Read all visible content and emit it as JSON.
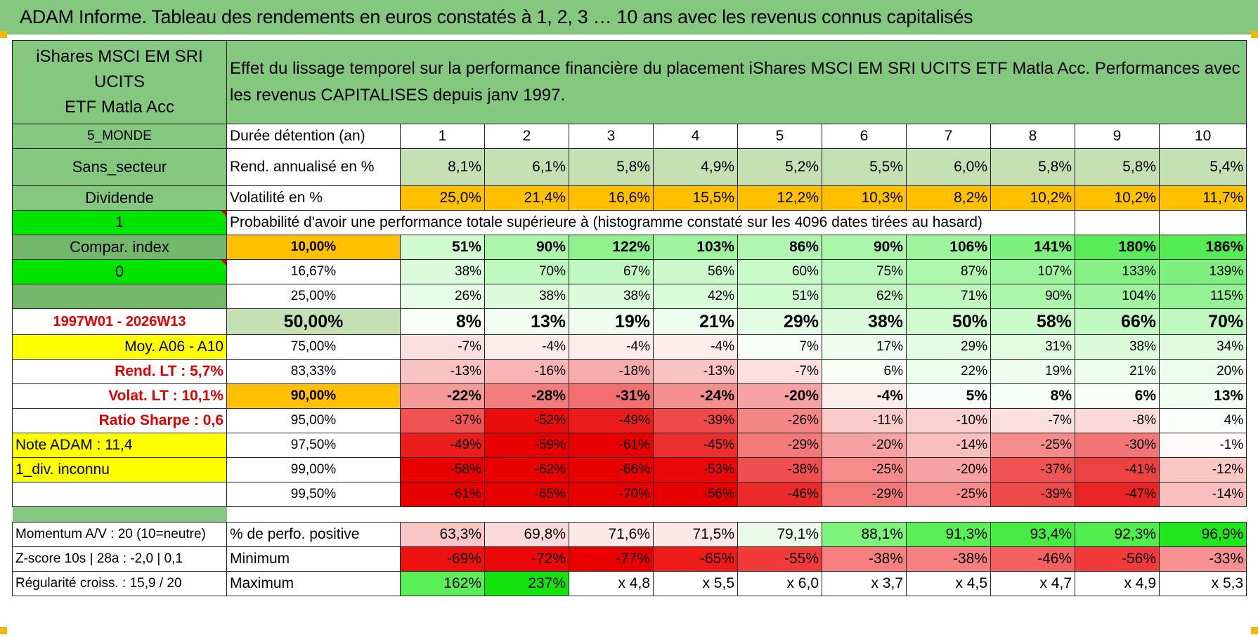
{
  "title": "ADAM Informe. Tableau des rendements en euros constatés à 1, 2, 3 … 10 ans avec les revenus connus capitalisés",
  "fund_name_line1": "iShares MSCI EM SRI UCITS",
  "fund_name_line2": "ETF Matla Acc",
  "description_line1": "Effet du lissage temporel sur la performance financière du placement iShares MSCI EM SRI UCITS ETF Matla Acc. Performances avec",
  "description_line2": "les revenus CAPITALISES depuis janv 1997.",
  "left": {
    "region": "5_MONDE",
    "sector": "Sans_secteur",
    "dividend": "Dividende",
    "one": "1",
    "compar_index": "Compar. index",
    "zero": "0",
    "period": "1997W01 - 2026W13",
    "moy": "Moy. A06 - A10",
    "rend_lt": "Rend. LT :   5,7%",
    "volat_lt": "Volat. LT :   10,1%",
    "ratio_sharpe": "Ratio Sharpe :    0,6",
    "note_adam": "Note ADAM : 11,4",
    "div_inconnu": "1_div. inconnu",
    "momentum": "Momentum A/V : 20 (10=neutre)",
    "zscore": "Z-score 10s | 28a : -2,0 | 0,1",
    "regularite": "Régularité croiss. : 15,9 / 20"
  },
  "labels": {
    "duree": "Durée détention (an)",
    "rend": "Rend. annualisé en %",
    "vol": "Volatilité en %",
    "prob": "Probabilité d'avoir une performance totale supérieure à (histogramme constaté sur les 4096 dates tirées au hasard)",
    "pct_pos": "% de perfo. positive",
    "minimum": "Minimum",
    "maximum": "Maximum"
  },
  "years": [
    "1",
    "2",
    "3",
    "4",
    "5",
    "6",
    "7",
    "8",
    "9",
    "10"
  ],
  "rend": [
    "8,1%",
    "6,1%",
    "5,8%",
    "4,9%",
    "5,2%",
    "5,5%",
    "6,0%",
    "5,8%",
    "5,8%",
    "5,4%"
  ],
  "vol": [
    "25,0%",
    "21,4%",
    "16,6%",
    "15,5%",
    "12,2%",
    "10,3%",
    "8,2%",
    "10,2%",
    "10,2%",
    "11,7%"
  ],
  "quantiles": [
    {
      "label": "10,00%",
      "values": [
        "51%",
        "90%",
        "122%",
        "103%",
        "86%",
        "90%",
        "106%",
        "141%",
        "180%",
        "186%"
      ]
    },
    {
      "label": "16,67%",
      "values": [
        "38%",
        "70%",
        "67%",
        "56%",
        "60%",
        "75%",
        "87%",
        "107%",
        "133%",
        "139%"
      ]
    },
    {
      "label": "25,00%",
      "values": [
        "26%",
        "38%",
        "38%",
        "42%",
        "51%",
        "62%",
        "71%",
        "90%",
        "104%",
        "115%"
      ]
    },
    {
      "label": "50,00%",
      "values": [
        "8%",
        "13%",
        "19%",
        "21%",
        "29%",
        "38%",
        "50%",
        "58%",
        "66%",
        "70%"
      ]
    },
    {
      "label": "75,00%",
      "values": [
        "-7%",
        "-4%",
        "-4%",
        "-4%",
        "7%",
        "17%",
        "29%",
        "31%",
        "38%",
        "34%"
      ]
    },
    {
      "label": "83,33%",
      "values": [
        "-13%",
        "-16%",
        "-18%",
        "-13%",
        "-7%",
        "6%",
        "22%",
        "19%",
        "21%",
        "20%"
      ]
    },
    {
      "label": "90,00%",
      "values": [
        "-22%",
        "-28%",
        "-31%",
        "-24%",
        "-20%",
        "-4%",
        "5%",
        "8%",
        "6%",
        "13%"
      ]
    },
    {
      "label": "95,00%",
      "values": [
        "-37%",
        "-52%",
        "-49%",
        "-39%",
        "-26%",
        "-11%",
        "-10%",
        "-7%",
        "-8%",
        "4%"
      ]
    },
    {
      "label": "97,50%",
      "values": [
        "-49%",
        "-59%",
        "-61%",
        "-45%",
        "-29%",
        "-20%",
        "-14%",
        "-25%",
        "-30%",
        "-1%"
      ]
    },
    {
      "label": "99,00%",
      "values": [
        "-58%",
        "-62%",
        "-66%",
        "-53%",
        "-38%",
        "-25%",
        "-20%",
        "-37%",
        "-41%",
        "-12%"
      ]
    },
    {
      "label": "99,50%",
      "values": [
        "-61%",
        "-65%",
        "-70%",
        "-56%",
        "-46%",
        "-29%",
        "-25%",
        "-39%",
        "-47%",
        "-14%"
      ]
    }
  ],
  "pct_pos": [
    "63,3%",
    "69,8%",
    "71,6%",
    "71,5%",
    "79,1%",
    "88,1%",
    "91,3%",
    "93,4%",
    "92,3%",
    "96,9%"
  ],
  "minimum": [
    "-69%",
    "-72%",
    "-77%",
    "-65%",
    "-55%",
    "-38%",
    "-38%",
    "-46%",
    "-56%",
    "-33%"
  ],
  "maximum": [
    "162%",
    "237%",
    "x 4,8",
    "x 5,5",
    "x 6,0",
    "x 3,7",
    "x 4,5",
    "x 4,7",
    "x 4,9",
    "x 5,3"
  ],
  "colors": {
    "header_green": "#84c77e",
    "orange": "#ffc000",
    "yellow": "#ffff00",
    "bright_green": "#00e400",
    "red_text": "#e00000"
  }
}
